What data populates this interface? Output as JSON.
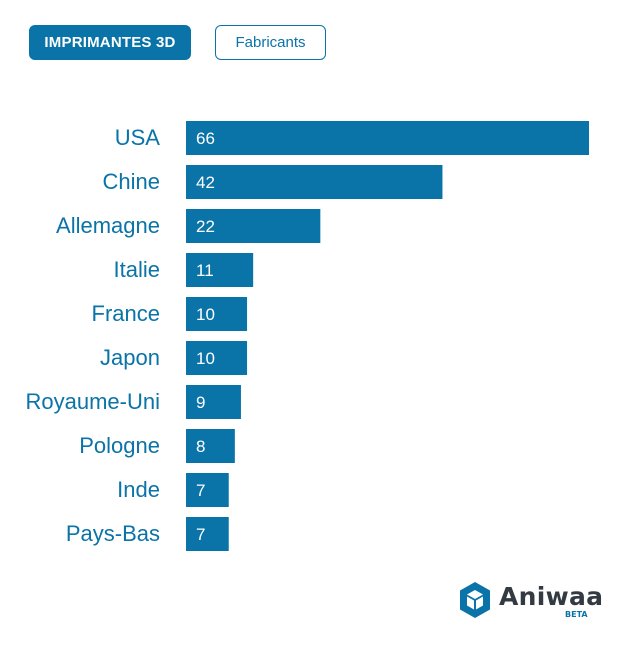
{
  "tabs": {
    "active_label": "IMPRIMANTES 3D",
    "inactive_label": "Fabricants"
  },
  "colors": {
    "accent": "#0a73a8",
    "bar": "#0a73a8",
    "label": "#0a73a8",
    "value_text": "#ffffff",
    "logo_text": "#333a42"
  },
  "chart_data": {
    "type": "bar",
    "orientation": "horizontal",
    "title": "",
    "xlabel": "",
    "ylabel": "",
    "categories": [
      "USA",
      "Chine",
      "Allemagne",
      "Italie",
      "France",
      "Japon",
      "Royaume-Uni",
      "Pologne",
      "Inde",
      "Pays-Bas"
    ],
    "values": [
      66,
      42,
      22,
      11,
      10,
      10,
      9,
      8,
      7,
      7
    ],
    "xlim": [
      0,
      66
    ],
    "grid": false,
    "legend": "none",
    "data_labels": "inside-left"
  },
  "logo": {
    "name": "Aniwaa",
    "tag": "BETA",
    "icon": "cube-hexagon-icon"
  }
}
